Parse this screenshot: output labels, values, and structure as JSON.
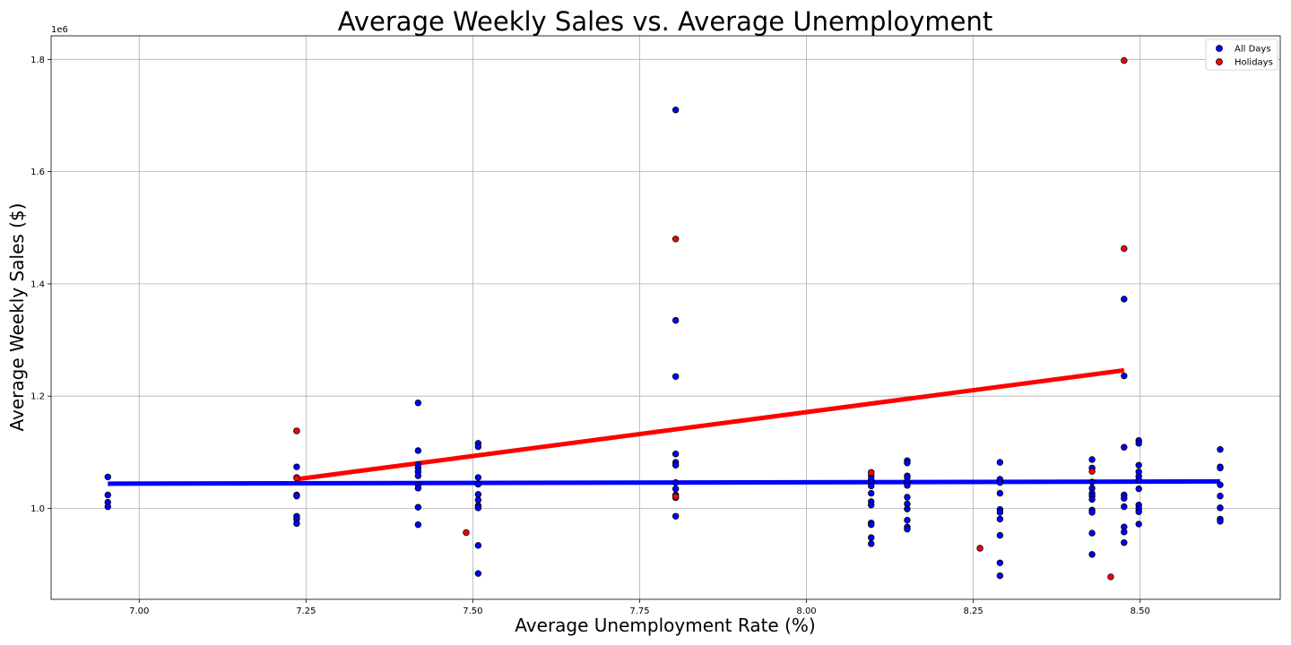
{
  "chart_data": {
    "type": "scatter",
    "title": "Average Weekly Sales vs. Average Unemployment",
    "xlabel": "Average Unemployment Rate (%)",
    "ylabel": "Average Weekly Sales ($)",
    "y_offset_label": "1e6",
    "y_scale": 1000000,
    "xlim": [
      6.868,
      8.71
    ],
    "ylim": [
      0.838,
      1.842
    ],
    "x_ticks": [
      7.0,
      7.25,
      7.5,
      7.75,
      8.0,
      8.25,
      8.5
    ],
    "x_tick_labels": [
      "7.00",
      "7.25",
      "7.50",
      "7.75",
      "8.00",
      "8.25",
      "8.50"
    ],
    "y_ticks": [
      1.0,
      1.2,
      1.4,
      1.6,
      1.8
    ],
    "y_tick_labels": [
      "1.0",
      "1.2",
      "1.4",
      "1.6",
      "1.8"
    ],
    "grid": true,
    "legend_position": "top-right",
    "series": [
      {
        "name": "All Days",
        "color": "#0000ff",
        "points": [
          [
            6.953,
            1.056
          ],
          [
            6.953,
            1.024
          ],
          [
            6.953,
            1.011
          ],
          [
            6.953,
            1.003
          ],
          [
            7.236,
            1.138
          ],
          [
            7.236,
            1.074
          ],
          [
            7.236,
            1.055
          ],
          [
            7.236,
            1.024
          ],
          [
            7.236,
            1.022
          ],
          [
            7.236,
            0.986
          ],
          [
            7.236,
            0.981
          ],
          [
            7.236,
            0.973
          ],
          [
            7.418,
            1.188
          ],
          [
            7.418,
            1.103
          ],
          [
            7.418,
            1.078
          ],
          [
            7.418,
            1.072
          ],
          [
            7.418,
            1.065
          ],
          [
            7.418,
            1.058
          ],
          [
            7.418,
            1.042
          ],
          [
            7.418,
            1.036
          ],
          [
            7.418,
            1.002
          ],
          [
            7.418,
            0.971
          ],
          [
            7.508,
            1.116
          ],
          [
            7.508,
            1.11
          ],
          [
            7.508,
            1.055
          ],
          [
            7.508,
            1.043
          ],
          [
            7.508,
            1.025
          ],
          [
            7.508,
            1.015
          ],
          [
            7.508,
            1.005
          ],
          [
            7.508,
            1.001
          ],
          [
            7.508,
            0.934
          ],
          [
            7.508,
            0.884
          ],
          [
            7.804,
            1.71
          ],
          [
            7.804,
            1.335
          ],
          [
            7.804,
            1.235
          ],
          [
            7.804,
            1.097
          ],
          [
            7.804,
            1.082
          ],
          [
            7.804,
            1.077
          ],
          [
            7.804,
            1.046
          ],
          [
            7.804,
            1.035
          ],
          [
            7.804,
            1.024
          ],
          [
            7.804,
            1.019
          ],
          [
            7.804,
            0.986
          ],
          [
            8.097,
            1.064
          ],
          [
            8.097,
            1.058
          ],
          [
            8.097,
            1.052
          ],
          [
            8.097,
            1.046
          ],
          [
            8.097,
            1.04
          ],
          [
            8.097,
            1.027
          ],
          [
            8.097,
            1.012
          ],
          [
            8.097,
            1.006
          ],
          [
            8.097,
            0.974
          ],
          [
            8.097,
            0.971
          ],
          [
            8.097,
            0.948
          ],
          [
            8.097,
            0.937
          ],
          [
            8.151,
            1.085
          ],
          [
            8.151,
            1.081
          ],
          [
            8.151,
            1.058
          ],
          [
            8.151,
            1.055
          ],
          [
            8.151,
            1.047
          ],
          [
            8.151,
            1.041
          ],
          [
            8.151,
            1.02
          ],
          [
            8.151,
            1.008
          ],
          [
            8.151,
            0.999
          ],
          [
            8.151,
            0.979
          ],
          [
            8.151,
            0.967
          ],
          [
            8.151,
            0.963
          ],
          [
            8.29,
            1.082
          ],
          [
            8.29,
            1.052
          ],
          [
            8.29,
            1.046
          ],
          [
            8.29,
            1.027
          ],
          [
            8.29,
            0.998
          ],
          [
            8.29,
            0.993
          ],
          [
            8.29,
            0.981
          ],
          [
            8.29,
            0.952
          ],
          [
            8.29,
            0.903
          ],
          [
            8.29,
            0.88
          ],
          [
            8.428,
            1.087
          ],
          [
            8.428,
            1.072
          ],
          [
            8.428,
            1.047
          ],
          [
            8.428,
            1.036
          ],
          [
            8.428,
            1.027
          ],
          [
            8.428,
            1.022
          ],
          [
            8.428,
            1.016
          ],
          [
            8.428,
            0.997
          ],
          [
            8.428,
            0.993
          ],
          [
            8.428,
            0.956
          ],
          [
            8.428,
            0.918
          ],
          [
            8.476,
            1.373
          ],
          [
            8.476,
            1.236
          ],
          [
            8.476,
            1.109
          ],
          [
            8.476,
            1.024
          ],
          [
            8.476,
            1.018
          ],
          [
            8.476,
            1.003
          ],
          [
            8.476,
            0.967
          ],
          [
            8.476,
            0.958
          ],
          [
            8.476,
            0.939
          ],
          [
            8.498,
            1.121
          ],
          [
            8.498,
            1.116
          ],
          [
            8.498,
            1.077
          ],
          [
            8.498,
            1.065
          ],
          [
            8.498,
            1.057
          ],
          [
            8.498,
            1.051
          ],
          [
            8.498,
            1.035
          ],
          [
            8.498,
            1.006
          ],
          [
            8.498,
            1.0
          ],
          [
            8.498,
            0.994
          ],
          [
            8.498,
            0.972
          ],
          [
            8.62,
            1.105
          ],
          [
            8.62,
            1.074
          ],
          [
            8.62,
            1.072
          ],
          [
            8.62,
            1.042
          ],
          [
            8.62,
            1.022
          ],
          [
            8.62,
            1.001
          ],
          [
            8.62,
            0.981
          ],
          [
            8.62,
            0.977
          ]
        ],
        "trend": [
          [
            6.953,
            1.044
          ],
          [
            8.62,
            1.048
          ]
        ]
      },
      {
        "name": "Holidays",
        "color": "#ff0000",
        "points": [
          [
            7.236,
            1.138
          ],
          [
            7.236,
            1.054
          ],
          [
            7.49,
            0.957
          ],
          [
            7.804,
            1.48
          ],
          [
            7.804,
            1.021
          ],
          [
            8.097,
            1.064
          ],
          [
            8.26,
            0.929
          ],
          [
            8.428,
            1.066
          ],
          [
            8.456,
            0.878
          ],
          [
            8.476,
            1.798
          ],
          [
            8.476,
            1.463
          ]
        ],
        "trend": [
          [
            7.236,
            1.052
          ],
          [
            8.476,
            1.246
          ]
        ]
      }
    ]
  }
}
